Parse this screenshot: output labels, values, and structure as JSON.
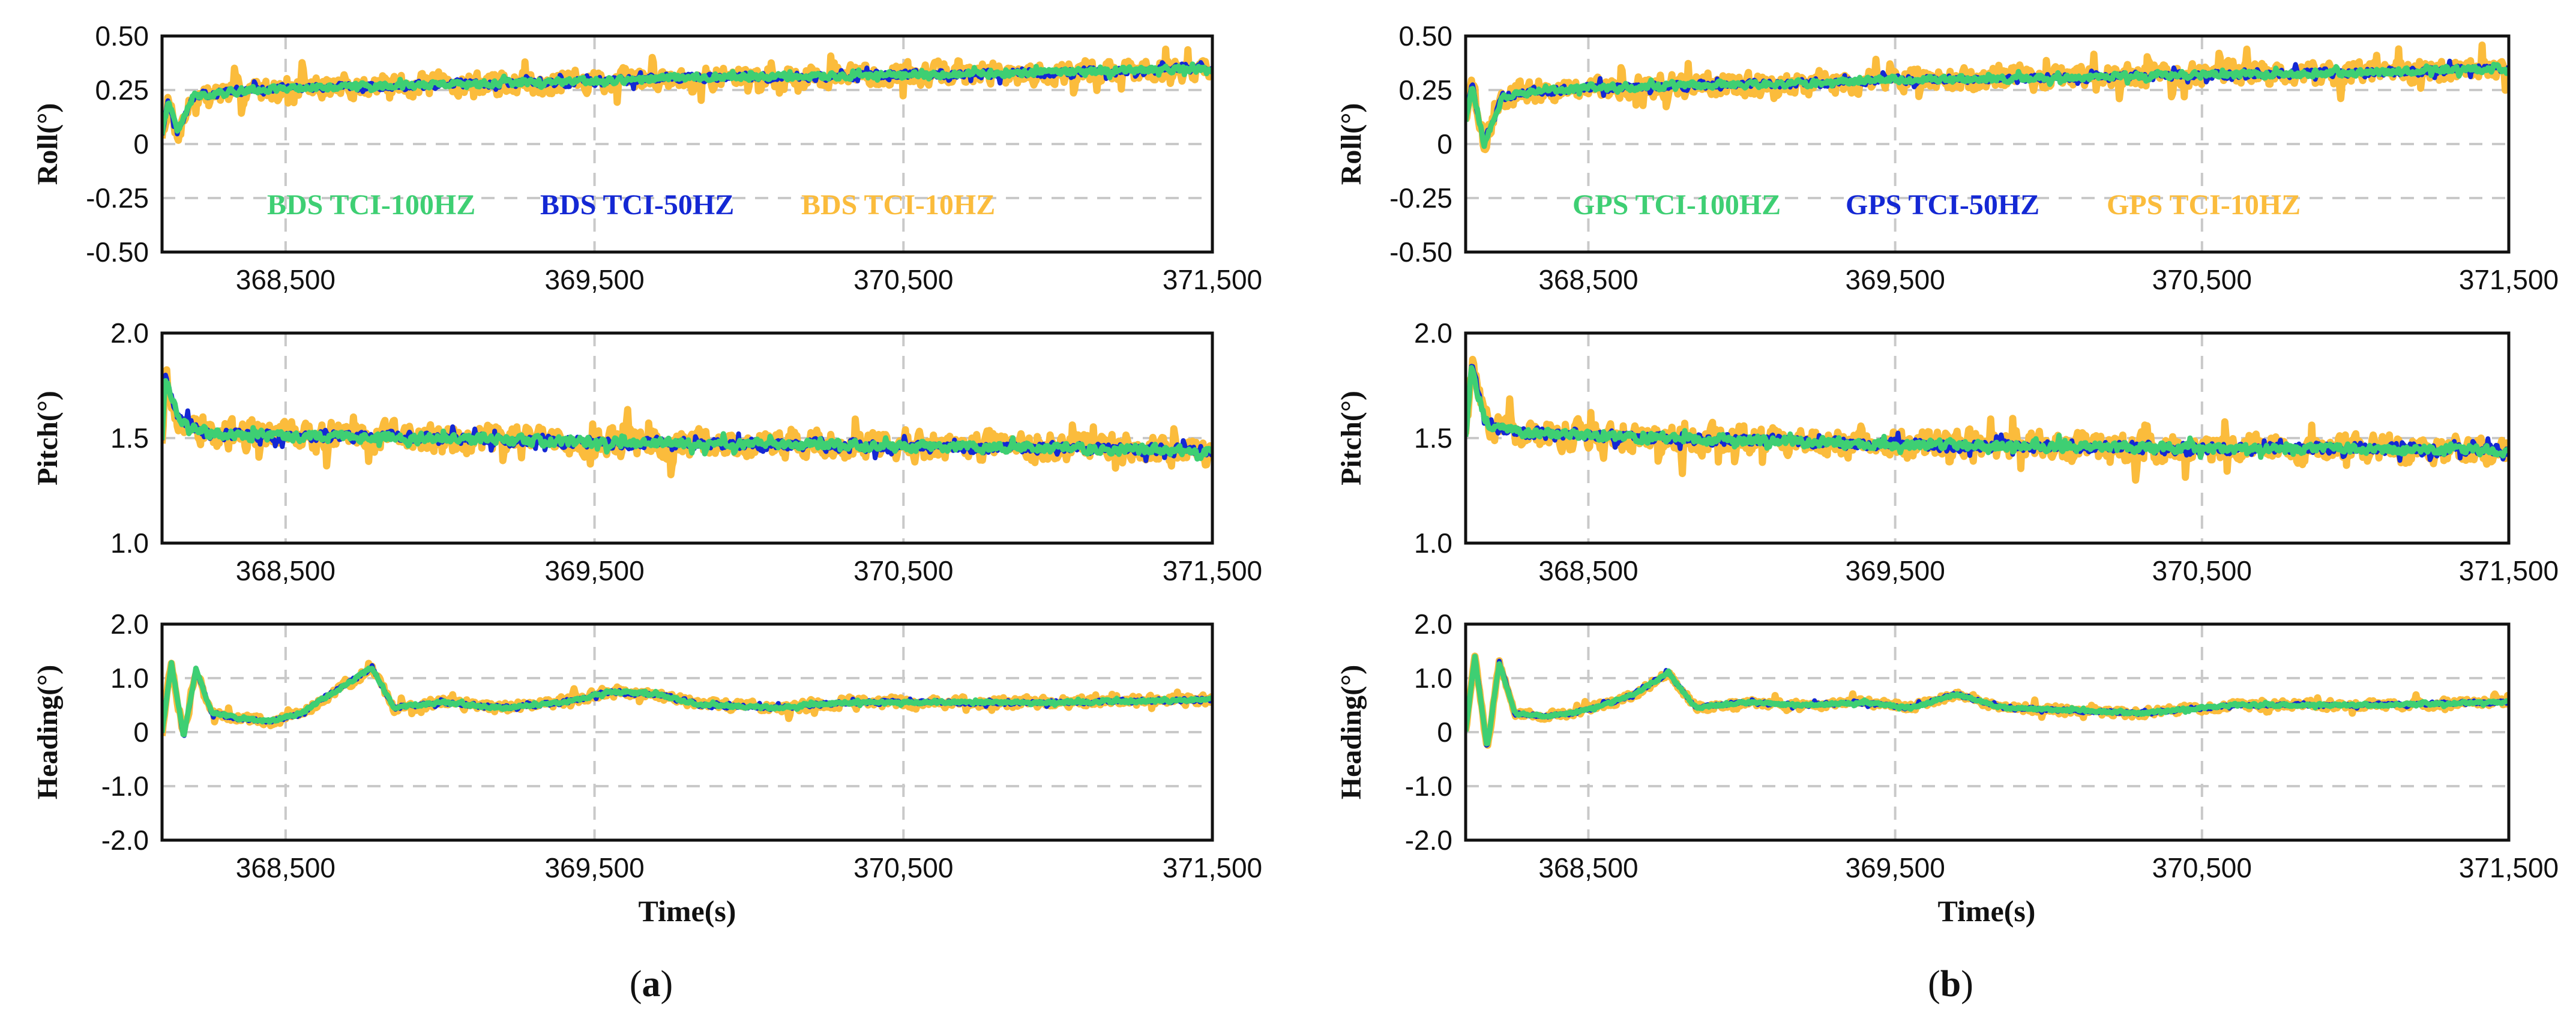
{
  "colors": {
    "hz100": "#3ecf73",
    "hz50": "#1428d4",
    "hz10": "#fbbc3c"
  },
  "chart_data": [
    {
      "type": "line",
      "caption": "(a)",
      "caption_letter": "a",
      "xlabel": "Time(s)",
      "xlim": [
        368100,
        371500
      ],
      "xticks": [
        368500,
        369500,
        370500,
        371500
      ],
      "xtick_labels": [
        "368,500",
        "369,500",
        "370,500",
        "371,500"
      ],
      "subplots": [
        {
          "key": "roll",
          "ylabel": "Roll(°)",
          "ylim": [
            -0.5,
            0.5
          ],
          "yticks": [
            -0.5,
            -0.25,
            0,
            0.25,
            0.5
          ],
          "ytick_labels": [
            "-0.50",
            "-0.25",
            "0",
            "0.25",
            "0.50"
          ],
          "legend": [
            "BDS TCI-100HZ",
            "BDS TCI-50HZ",
            "BDS TCI-10HZ"
          ],
          "series": [
            {
              "name": "BDS TCI-10HZ",
              "noise": 0.07,
              "knots_x": [
                368100,
                368120,
                368150,
                368200,
                368300,
                368500,
                368800,
                369200,
                369500,
                369800,
                370100,
                370500,
                371000,
                371500
              ],
              "knots_y": [
                0.05,
                0.2,
                0.05,
                0.22,
                0.24,
                0.26,
                0.27,
                0.28,
                0.29,
                0.31,
                0.31,
                0.32,
                0.33,
                0.35
              ]
            },
            {
              "name": "BDS TCI-50HZ",
              "noise": 0.025,
              "knots_x": [
                368100,
                368120,
                368150,
                368200,
                368300,
                368500,
                368800,
                369200,
                369500,
                369800,
                370100,
                370500,
                371000,
                371500
              ],
              "knots_y": [
                0.05,
                0.2,
                0.05,
                0.22,
                0.24,
                0.26,
                0.27,
                0.28,
                0.29,
                0.31,
                0.31,
                0.32,
                0.33,
                0.35
              ]
            },
            {
              "name": "BDS TCI-100HZ",
              "noise": 0.02,
              "knots_x": [
                368100,
                368120,
                368150,
                368200,
                368300,
                368500,
                368800,
                369200,
                369500,
                369800,
                370100,
                370500,
                371000,
                371500
              ],
              "knots_y": [
                0.05,
                0.2,
                0.05,
                0.22,
                0.24,
                0.26,
                0.27,
                0.28,
                0.29,
                0.31,
                0.31,
                0.32,
                0.33,
                0.35
              ]
            }
          ]
        },
        {
          "key": "pitch",
          "ylabel": "Pitch(°)",
          "ylim": [
            1.0,
            2.0
          ],
          "yticks": [
            1.0,
            1.5,
            2.0
          ],
          "ytick_labels": [
            "1.0",
            "1.5",
            "2.0"
          ],
          "legend": [],
          "series": [
            {
              "name": "BDS TCI-10HZ",
              "noise": 0.09,
              "knots_x": [
                368100,
                368110,
                368150,
                368250,
                368500,
                369000,
                369500,
                370000,
                370500,
                371000,
                371500
              ],
              "knots_y": [
                1.5,
                1.8,
                1.6,
                1.52,
                1.51,
                1.5,
                1.48,
                1.47,
                1.46,
                1.45,
                1.44
              ]
            },
            {
              "name": "BDS TCI-50HZ",
              "noise": 0.035,
              "knots_x": [
                368100,
                368110,
                368150,
                368250,
                368500,
                369000,
                369500,
                370000,
                370500,
                371000,
                371500
              ],
              "knots_y": [
                1.5,
                1.8,
                1.6,
                1.52,
                1.51,
                1.5,
                1.48,
                1.47,
                1.46,
                1.45,
                1.44
              ]
            },
            {
              "name": "BDS TCI-100HZ",
              "noise": 0.03,
              "knots_x": [
                368100,
                368110,
                368150,
                368250,
                368500,
                369000,
                369500,
                370000,
                370500,
                371000,
                371500
              ],
              "knots_y": [
                1.5,
                1.8,
                1.6,
                1.52,
                1.51,
                1.5,
                1.48,
                1.47,
                1.46,
                1.45,
                1.44
              ]
            }
          ]
        },
        {
          "key": "heading",
          "ylabel": "Heading(°)",
          "ylim": [
            -2.0,
            2.0
          ],
          "yticks": [
            -2.0,
            -1.0,
            0,
            1.0,
            2.0
          ],
          "ytick_labels": [
            "-2.0",
            "-1.0",
            "0",
            "1.0",
            "2.0"
          ],
          "legend": [],
          "series": [
            {
              "name": "BDS TCI-10HZ",
              "noise": 0.12,
              "knots_x": [
                368100,
                368130,
                368170,
                368210,
                368260,
                368350,
                368450,
                368550,
                368700,
                368780,
                368850,
                369000,
                369200,
                369400,
                369550,
                369700,
                369850,
                370100,
                370300,
                370600,
                371000,
                371500
              ],
              "knots_y": [
                0.0,
                1.3,
                -0.1,
                1.2,
                0.35,
                0.25,
                0.2,
                0.35,
                0.9,
                1.2,
                0.45,
                0.55,
                0.45,
                0.55,
                0.75,
                0.7,
                0.5,
                0.45,
                0.55,
                0.55,
                0.55,
                0.6
              ]
            },
            {
              "name": "BDS TCI-50HZ",
              "noise": 0.05,
              "knots_x": [
                368100,
                368130,
                368170,
                368210,
                368260,
                368350,
                368450,
                368550,
                368700,
                368780,
                368850,
                369000,
                369200,
                369400,
                369550,
                369700,
                369850,
                370100,
                370300,
                370600,
                371000,
                371500
              ],
              "knots_y": [
                0.0,
                1.3,
                -0.1,
                1.2,
                0.35,
                0.25,
                0.2,
                0.35,
                0.9,
                1.2,
                0.45,
                0.55,
                0.45,
                0.55,
                0.75,
                0.7,
                0.5,
                0.45,
                0.55,
                0.55,
                0.55,
                0.6
              ]
            },
            {
              "name": "BDS TCI-100HZ",
              "noise": 0.04,
              "knots_x": [
                368100,
                368130,
                368170,
                368210,
                368260,
                368350,
                368450,
                368550,
                368700,
                368780,
                368850,
                369000,
                369200,
                369400,
                369550,
                369700,
                369850,
                370100,
                370300,
                370600,
                371000,
                371500
              ],
              "knots_y": [
                0.0,
                1.3,
                -0.1,
                1.2,
                0.35,
                0.25,
                0.2,
                0.35,
                0.9,
                1.2,
                0.45,
                0.55,
                0.45,
                0.55,
                0.75,
                0.7,
                0.5,
                0.45,
                0.55,
                0.55,
                0.55,
                0.6
              ]
            }
          ]
        }
      ]
    },
    {
      "type": "line",
      "caption": "(b)",
      "caption_letter": "b",
      "xlabel": "Time(s)",
      "xlim": [
        368100,
        371500
      ],
      "xticks": [
        368500,
        369500,
        370500,
        371500
      ],
      "xtick_labels": [
        "368,500",
        "369,500",
        "370,500",
        "371,500"
      ],
      "subplots": [
        {
          "key": "roll",
          "ylabel": "Roll(°)",
          "ylim": [
            -0.5,
            0.5
          ],
          "yticks": [
            -0.5,
            -0.25,
            0,
            0.25,
            0.5
          ],
          "ytick_labels": [
            "-0.50",
            "-0.25",
            "0",
            "0.25",
            "0.50"
          ],
          "legend": [
            "GPS TCI-100HZ",
            "GPS TCI-50HZ",
            "GPS TCI-10HZ"
          ],
          "series": [
            {
              "name": "GPS TCI-10HZ",
              "noise": 0.07,
              "knots_x": [
                368100,
                368120,
                368160,
                368220,
                368300,
                368500,
                368800,
                369200,
                369500,
                369800,
                370100,
                370500,
                371000,
                371500
              ],
              "knots_y": [
                0.1,
                0.28,
                0.0,
                0.22,
                0.24,
                0.26,
                0.27,
                0.28,
                0.3,
                0.3,
                0.31,
                0.32,
                0.33,
                0.35
              ]
            },
            {
              "name": "GPS TCI-50HZ",
              "noise": 0.025,
              "knots_x": [
                368100,
                368120,
                368160,
                368220,
                368300,
                368500,
                368800,
                369200,
                369500,
                369800,
                370100,
                370500,
                371000,
                371500
              ],
              "knots_y": [
                0.1,
                0.28,
                0.0,
                0.22,
                0.24,
                0.26,
                0.27,
                0.28,
                0.3,
                0.3,
                0.31,
                0.32,
                0.33,
                0.35
              ]
            },
            {
              "name": "GPS TCI-100HZ",
              "noise": 0.02,
              "knots_x": [
                368100,
                368120,
                368160,
                368220,
                368300,
                368500,
                368800,
                369200,
                369500,
                369800,
                370100,
                370500,
                371000,
                371500
              ],
              "knots_y": [
                0.1,
                0.28,
                0.0,
                0.22,
                0.24,
                0.26,
                0.27,
                0.28,
                0.3,
                0.3,
                0.31,
                0.32,
                0.33,
                0.35
              ]
            }
          ]
        },
        {
          "key": "pitch",
          "ylabel": "Pitch(°)",
          "ylim": [
            1.0,
            2.0
          ],
          "yticks": [
            1.0,
            1.5,
            2.0
          ],
          "ytick_labels": [
            "1.0",
            "1.5",
            "2.0"
          ],
          "legend": [],
          "series": [
            {
              "name": "GPS TCI-10HZ",
              "noise": 0.09,
              "knots_x": [
                368100,
                368120,
                368160,
                368250,
                368500,
                369000,
                369500,
                370000,
                370500,
                371000,
                371500
              ],
              "knots_y": [
                1.5,
                1.85,
                1.58,
                1.53,
                1.51,
                1.49,
                1.47,
                1.46,
                1.45,
                1.45,
                1.44
              ]
            },
            {
              "name": "GPS TCI-50HZ",
              "noise": 0.035,
              "knots_x": [
                368100,
                368120,
                368160,
                368250,
                368500,
                369000,
                369500,
                370000,
                370500,
                371000,
                371500
              ],
              "knots_y": [
                1.5,
                1.85,
                1.58,
                1.53,
                1.51,
                1.49,
                1.47,
                1.46,
                1.45,
                1.45,
                1.44
              ]
            },
            {
              "name": "GPS TCI-100HZ",
              "noise": 0.03,
              "knots_x": [
                368100,
                368120,
                368160,
                368250,
                368500,
                369000,
                369500,
                370000,
                370500,
                371000,
                371500
              ],
              "knots_y": [
                1.5,
                1.85,
                1.58,
                1.53,
                1.51,
                1.49,
                1.47,
                1.46,
                1.45,
                1.45,
                1.44
              ]
            }
          ]
        },
        {
          "key": "heading",
          "ylabel": "Heading(°)",
          "ylim": [
            -2.0,
            2.0
          ],
          "yticks": [
            -2.0,
            -1.0,
            0,
            1.0,
            2.0
          ],
          "ytick_labels": [
            "-2.0",
            "-1.0",
            "0",
            "1.0",
            "2.0"
          ],
          "legend": [],
          "series": [
            {
              "name": "GPS TCI-10HZ",
              "noise": 0.1,
              "knots_x": [
                368100,
                368130,
                368170,
                368210,
                368260,
                368350,
                368450,
                368550,
                368650,
                368760,
                368850,
                369000,
                369200,
                369400,
                369550,
                369700,
                369850,
                370100,
                370300,
                370600,
                371000,
                371500
              ],
              "knots_y": [
                0.0,
                1.4,
                -0.3,
                1.3,
                0.35,
                0.3,
                0.35,
                0.5,
                0.7,
                1.1,
                0.45,
                0.55,
                0.5,
                0.55,
                0.45,
                0.7,
                0.45,
                0.4,
                0.35,
                0.5,
                0.5,
                0.55
              ]
            },
            {
              "name": "GPS TCI-50HZ",
              "noise": 0.045,
              "knots_x": [
                368100,
                368130,
                368170,
                368210,
                368260,
                368350,
                368450,
                368550,
                368650,
                368760,
                368850,
                369000,
                369200,
                369400,
                369550,
                369700,
                369850,
                370100,
                370300,
                370600,
                371000,
                371500
              ],
              "knots_y": [
                0.0,
                1.4,
                -0.3,
                1.3,
                0.35,
                0.3,
                0.35,
                0.5,
                0.7,
                1.1,
                0.45,
                0.55,
                0.5,
                0.55,
                0.45,
                0.7,
                0.45,
                0.4,
                0.35,
                0.5,
                0.5,
                0.55
              ]
            },
            {
              "name": "GPS TCI-100HZ",
              "noise": 0.035,
              "knots_x": [
                368100,
                368130,
                368170,
                368210,
                368260,
                368350,
                368450,
                368550,
                368650,
                368760,
                368850,
                369000,
                369200,
                369400,
                369550,
                369700,
                369850,
                370100,
                370300,
                370600,
                371000,
                371500
              ],
              "knots_y": [
                0.0,
                1.4,
                -0.3,
                1.3,
                0.35,
                0.3,
                0.35,
                0.5,
                0.7,
                1.1,
                0.45,
                0.55,
                0.5,
                0.55,
                0.45,
                0.7,
                0.45,
                0.4,
                0.35,
                0.5,
                0.5,
                0.55
              ]
            }
          ]
        }
      ]
    }
  ]
}
